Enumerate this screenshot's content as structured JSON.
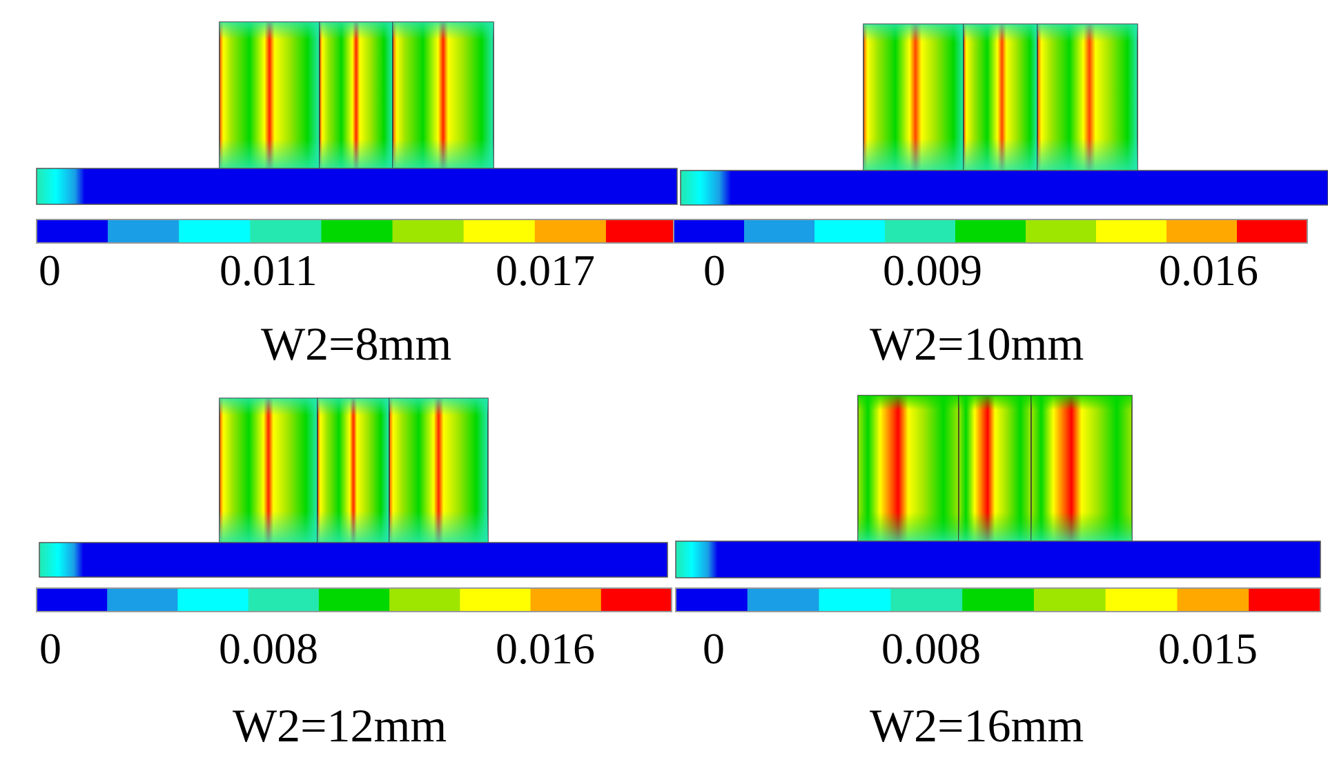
{
  "colors": {
    "scale": [
      "#0000f0",
      "#1a9ee6",
      "#00ffff",
      "#25e8b0",
      "#00d800",
      "#9ee600",
      "#ffff00",
      "#ffa800",
      "#ff0000"
    ],
    "base_bar": "#0000ef",
    "frame": "#333333"
  },
  "panels": [
    {
      "caption": "W2=8mm",
      "scale_labels": [
        "0",
        "0.011",
        "0.017"
      ]
    },
    {
      "caption": "W2=10mm",
      "scale_labels": [
        "0",
        "0.009",
        "0.016"
      ]
    },
    {
      "caption": "W2=12mm",
      "scale_labels": [
        "0",
        "0.008",
        "0.016"
      ]
    },
    {
      "caption": "W2=16mm",
      "scale_labels": [
        "0",
        "0.008",
        "0.015"
      ]
    }
  ]
}
